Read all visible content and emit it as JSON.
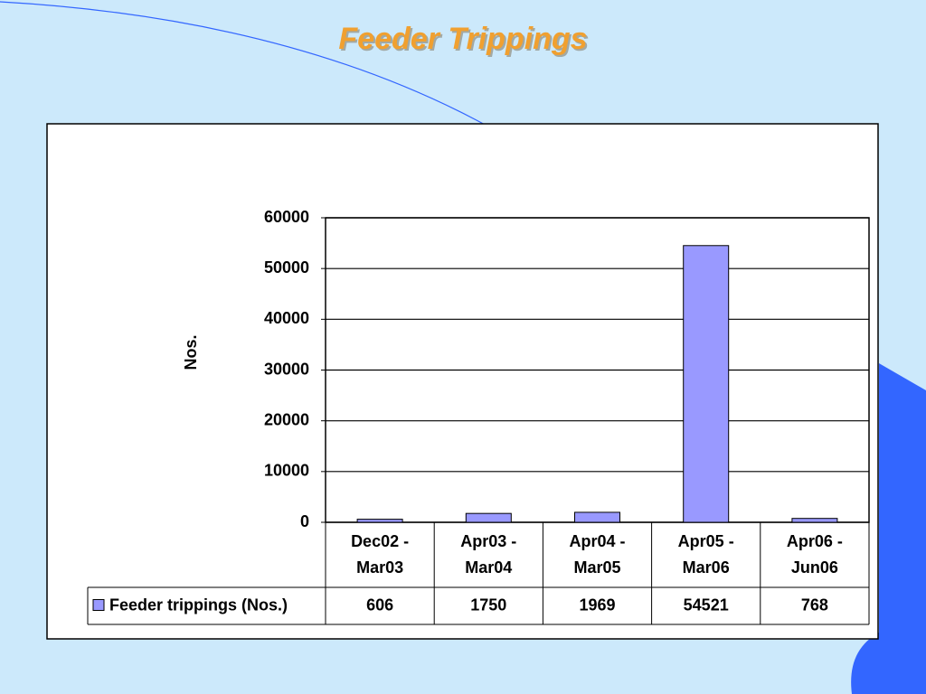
{
  "chart_data": {
    "type": "bar",
    "title": "Feeder Trippings",
    "y_label": "Nos.",
    "categories": [
      "Dec02 - Mar03",
      "Apr03 - Mar04",
      "Apr04 - Mar05",
      "Apr05 - Mar06",
      "Apr06 - Jun06"
    ],
    "series": [
      {
        "name": "Feeder trippings (Nos.)",
        "color": "#9999ff",
        "values": [
          606,
          1750,
          1969,
          54521,
          768
        ]
      }
    ],
    "ylim": [
      0,
      60000
    ],
    "yticks": [
      0,
      10000,
      20000,
      30000,
      40000,
      50000,
      60000
    ],
    "grid": true
  }
}
